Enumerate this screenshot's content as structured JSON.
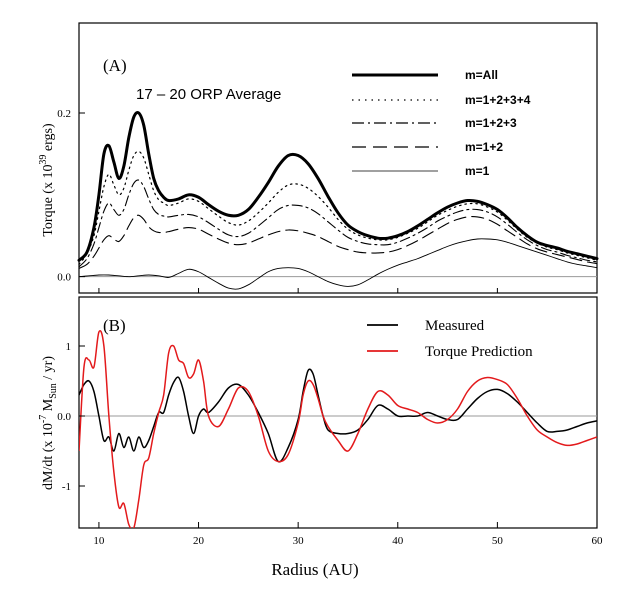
{
  "chart_data": [
    {
      "id": "A",
      "type": "line",
      "panel_label": "(A)",
      "annotation": "17 – 20 ORP Average",
      "ylabel_parts": {
        "prefix": "Torque (x 10",
        "sup": "39",
        "suffix": " ergs)"
      },
      "xlim": [
        8,
        60
      ],
      "ylim": [
        -0.02,
        0.31
      ],
      "yticks": [
        0.0,
        0.2
      ],
      "ytick_labels": [
        "0.0",
        "0.2"
      ],
      "legend": [
        "m=All",
        "m=1+2+3+4",
        "m=1+2+3",
        "m=1+2",
        "m=1"
      ],
      "series": [
        {
          "name": "m=All",
          "style": "thick",
          "x": [
            8,
            8.8,
            9.5,
            10,
            10.5,
            11,
            11.5,
            12,
            12.5,
            13,
            13.5,
            14,
            14.5,
            15,
            15.5,
            16,
            16.5,
            17,
            18,
            19,
            20,
            21,
            22,
            23,
            24,
            25,
            26,
            27,
            28,
            29,
            30,
            31,
            32,
            33,
            34,
            35,
            36,
            37,
            38,
            39,
            40,
            41,
            42,
            43,
            44,
            45,
            46,
            47,
            48,
            49,
            50,
            51,
            52,
            53,
            54,
            55,
            56,
            57,
            58,
            59,
            60
          ],
          "values": [
            0.02,
            0.03,
            0.06,
            0.1,
            0.15,
            0.16,
            0.14,
            0.12,
            0.135,
            0.17,
            0.195,
            0.2,
            0.185,
            0.15,
            0.12,
            0.105,
            0.097,
            0.093,
            0.095,
            0.1,
            0.097,
            0.088,
            0.08,
            0.075,
            0.075,
            0.082,
            0.097,
            0.115,
            0.135,
            0.148,
            0.148,
            0.138,
            0.12,
            0.098,
            0.078,
            0.063,
            0.055,
            0.05,
            0.047,
            0.047,
            0.05,
            0.055,
            0.062,
            0.07,
            0.078,
            0.085,
            0.09,
            0.093,
            0.092,
            0.088,
            0.082,
            0.072,
            0.06,
            0.05,
            0.042,
            0.038,
            0.035,
            0.031,
            0.028,
            0.025,
            0.022
          ]
        },
        {
          "name": "m=1+2+3+4",
          "style": "dotted",
          "x": [
            8,
            8.8,
            9.5,
            10,
            10.5,
            11,
            11.5,
            12,
            12.5,
            13,
            13.5,
            14,
            14.5,
            15,
            15.5,
            16,
            16.5,
            17,
            18,
            19,
            20,
            21,
            22,
            23,
            24,
            25,
            26,
            27,
            28,
            29,
            30,
            31,
            32,
            33,
            34,
            35,
            36,
            37,
            38,
            39,
            40,
            41,
            42,
            43,
            44,
            45,
            46,
            47,
            48,
            49,
            50,
            51,
            52,
            53,
            54,
            55,
            56,
            57,
            58,
            59,
            60
          ],
          "values": [
            0.015,
            0.028,
            0.05,
            0.08,
            0.11,
            0.125,
            0.112,
            0.1,
            0.108,
            0.13,
            0.148,
            0.153,
            0.145,
            0.125,
            0.105,
            0.094,
            0.09,
            0.087,
            0.09,
            0.095,
            0.092,
            0.083,
            0.074,
            0.066,
            0.063,
            0.068,
            0.078,
            0.09,
            0.103,
            0.112,
            0.113,
            0.108,
            0.098,
            0.085,
            0.07,
            0.058,
            0.051,
            0.047,
            0.045,
            0.045,
            0.048,
            0.053,
            0.059,
            0.067,
            0.075,
            0.081,
            0.086,
            0.089,
            0.089,
            0.085,
            0.079,
            0.069,
            0.058,
            0.048,
            0.041,
            0.036,
            0.033,
            0.029,
            0.026,
            0.023,
            0.02
          ]
        },
        {
          "name": "m=1+2+3",
          "style": "dashdot",
          "x": [
            8,
            8.8,
            9.5,
            10,
            10.5,
            11,
            11.5,
            12,
            12.5,
            13,
            13.5,
            14,
            14.5,
            15,
            15.5,
            16,
            16.5,
            17,
            18,
            19,
            20,
            21,
            22,
            23,
            24,
            25,
            26,
            27,
            28,
            29,
            30,
            31,
            32,
            33,
            34,
            35,
            36,
            37,
            38,
            39,
            40,
            41,
            42,
            43,
            44,
            45,
            46,
            47,
            48,
            49,
            50,
            51,
            52,
            53,
            54,
            55,
            56,
            57,
            58,
            59,
            60
          ],
          "values": [
            0.012,
            0.022,
            0.04,
            0.06,
            0.08,
            0.09,
            0.082,
            0.075,
            0.082,
            0.1,
            0.114,
            0.118,
            0.11,
            0.095,
            0.082,
            0.076,
            0.074,
            0.073,
            0.075,
            0.076,
            0.073,
            0.066,
            0.058,
            0.051,
            0.049,
            0.053,
            0.062,
            0.072,
            0.082,
            0.087,
            0.087,
            0.084,
            0.077,
            0.067,
            0.057,
            0.048,
            0.043,
            0.04,
            0.039,
            0.039,
            0.042,
            0.047,
            0.053,
            0.06,
            0.068,
            0.074,
            0.079,
            0.082,
            0.082,
            0.079,
            0.073,
            0.064,
            0.054,
            0.045,
            0.038,
            0.033,
            0.03,
            0.026,
            0.023,
            0.02,
            0.018
          ]
        },
        {
          "name": "m=1+2",
          "style": "dashed",
          "x": [
            8,
            8.8,
            9.5,
            10,
            10.5,
            11,
            11.5,
            12,
            12.5,
            13,
            13.5,
            14,
            14.5,
            15,
            15.5,
            16,
            16.5,
            17,
            18,
            19,
            20,
            21,
            22,
            23,
            24,
            25,
            26,
            27,
            28,
            29,
            30,
            31,
            32,
            33,
            34,
            35,
            36,
            37,
            38,
            39,
            40,
            41,
            42,
            43,
            44,
            45,
            46,
            47,
            48,
            49,
            50,
            51,
            52,
            53,
            54,
            55,
            56,
            57,
            58,
            59,
            60
          ],
          "values": [
            0.01,
            0.015,
            0.025,
            0.035,
            0.045,
            0.05,
            0.046,
            0.043,
            0.05,
            0.062,
            0.072,
            0.075,
            0.07,
            0.061,
            0.056,
            0.054,
            0.054,
            0.055,
            0.058,
            0.06,
            0.058,
            0.052,
            0.046,
            0.041,
            0.039,
            0.041,
            0.046,
            0.051,
            0.055,
            0.057,
            0.056,
            0.053,
            0.049,
            0.043,
            0.037,
            0.033,
            0.03,
            0.029,
            0.029,
            0.03,
            0.033,
            0.038,
            0.044,
            0.051,
            0.058,
            0.065,
            0.07,
            0.073,
            0.073,
            0.07,
            0.064,
            0.056,
            0.048,
            0.04,
            0.034,
            0.03,
            0.027,
            0.024,
            0.021,
            0.018,
            0.016
          ]
        },
        {
          "name": "m=1",
          "style": "thin",
          "x": [
            8,
            9,
            10,
            11,
            12,
            13,
            14,
            15,
            16,
            17,
            18,
            19,
            20,
            21,
            22,
            23,
            24,
            25,
            26,
            27,
            28,
            29,
            30,
            31,
            32,
            33,
            34,
            35,
            36,
            37,
            38,
            39,
            40,
            41,
            42,
            43,
            44,
            45,
            46,
            47,
            48,
            49,
            50,
            51,
            52,
            53,
            54,
            55,
            56,
            57,
            58,
            59,
            60
          ],
          "values": [
            0.0,
            0.001,
            0.002,
            0.002,
            0.001,
            0.0,
            0.001,
            0.002,
            0.001,
            -0.001,
            0.004,
            0.009,
            0.006,
            -0.001,
            -0.008,
            -0.014,
            -0.015,
            -0.01,
            -0.002,
            0.006,
            0.01,
            0.011,
            0.01,
            0.006,
            0.0,
            -0.006,
            -0.01,
            -0.012,
            -0.01,
            -0.004,
            0.003,
            0.009,
            0.014,
            0.018,
            0.022,
            0.027,
            0.032,
            0.037,
            0.041,
            0.044,
            0.046,
            0.046,
            0.045,
            0.042,
            0.038,
            0.034,
            0.03,
            0.026,
            0.022,
            0.018,
            0.015,
            0.013,
            0.011
          ]
        }
      ]
    },
    {
      "id": "B",
      "type": "line",
      "panel_label": "(B)",
      "ylabel_parts": {
        "prefix": "dM/dt (x 10",
        "sup": "-7",
        "mid": " M",
        "sub": "Sun",
        "suffix": " / yr)"
      },
      "xlabel": "Radius (AU)",
      "xlim": [
        8,
        60
      ],
      "ylim": [
        -1.6,
        1.7
      ],
      "xticks": [
        10,
        20,
        30,
        40,
        50,
        60
      ],
      "xtick_labels": [
        "10",
        "20",
        "30",
        "40",
        "50",
        "60"
      ],
      "yticks": [
        1,
        0,
        -1
      ],
      "ytick_labels": [
        "1",
        "0.0",
        "-1"
      ],
      "legend": [
        "Measured",
        "Torque Prediction"
      ],
      "series": [
        {
          "name": "Measured",
          "color": "#000000",
          "x": [
            8,
            8.5,
            9,
            9.5,
            10,
            10.5,
            11,
            11.5,
            12,
            12.5,
            13,
            13.5,
            14,
            14.5,
            15,
            15.5,
            16,
            16.5,
            17,
            17.5,
            18,
            18.5,
            19,
            19.5,
            20,
            20.5,
            21,
            22,
            23,
            24,
            25,
            26,
            27,
            28,
            29,
            30,
            30.5,
            31,
            31.5,
            32,
            32.5,
            33,
            34,
            35,
            36,
            37,
            38,
            39,
            40,
            41,
            42,
            43,
            44,
            45,
            46,
            47,
            48,
            49,
            50,
            51,
            52,
            53,
            54,
            55,
            56,
            57,
            58,
            59,
            60
          ],
          "values": [
            0.3,
            0.45,
            0.5,
            0.35,
            0.0,
            -0.35,
            -0.3,
            -0.5,
            -0.25,
            -0.45,
            -0.3,
            -0.5,
            -0.3,
            -0.45,
            -0.35,
            -0.15,
            0.05,
            0.05,
            0.3,
            0.48,
            0.55,
            0.35,
            0.0,
            -0.25,
            0.0,
            0.1,
            0.05,
            0.2,
            0.4,
            0.45,
            0.3,
            0.05,
            -0.25,
            -0.65,
            -0.45,
            -0.05,
            0.35,
            0.65,
            0.6,
            0.3,
            0.0,
            -0.2,
            -0.25,
            -0.25,
            -0.2,
            -0.05,
            0.15,
            0.1,
            0.0,
            0.0,
            0.0,
            0.05,
            0.0,
            -0.05,
            -0.05,
            0.1,
            0.25,
            0.35,
            0.38,
            0.32,
            0.2,
            0.05,
            -0.1,
            -0.22,
            -0.22,
            -0.2,
            -0.15,
            -0.1,
            -0.07
          ]
        },
        {
          "name": "Torque Prediction",
          "color": "#e31a1c",
          "x": [
            8,
            8.5,
            9,
            9.5,
            10,
            10.5,
            11,
            11.5,
            12,
            12.5,
            13,
            13.5,
            14,
            14.5,
            15,
            15.5,
            16,
            16.5,
            17,
            17.5,
            18,
            18.5,
            19,
            19.5,
            20,
            20.5,
            21,
            22,
            23,
            24,
            25,
            26,
            27,
            28,
            29,
            30,
            30.5,
            31,
            31.5,
            32,
            32.5,
            33,
            34,
            35,
            36,
            37,
            38,
            39,
            40,
            41,
            42,
            43,
            44,
            45,
            46,
            47,
            48,
            49,
            50,
            51,
            52,
            53,
            54,
            55,
            56,
            57,
            58,
            59,
            60
          ],
          "values": [
            -0.5,
            0.7,
            0.8,
            0.7,
            1.2,
            1.0,
            0.0,
            -0.8,
            -1.3,
            -1.25,
            -1.55,
            -1.6,
            -1.2,
            -0.7,
            -0.6,
            -0.25,
            0.05,
            0.3,
            0.9,
            1.0,
            0.8,
            0.75,
            0.55,
            0.6,
            0.8,
            0.5,
            0.0,
            -0.15,
            0.1,
            0.4,
            0.35,
            0.0,
            -0.5,
            -0.65,
            -0.55,
            -0.1,
            0.3,
            0.5,
            0.45,
            0.25,
            0.0,
            -0.15,
            -0.35,
            -0.5,
            -0.25,
            0.1,
            0.35,
            0.3,
            0.15,
            0.1,
            0.05,
            -0.05,
            -0.1,
            -0.05,
            0.1,
            0.35,
            0.5,
            0.55,
            0.52,
            0.45,
            0.25,
            0.0,
            -0.2,
            -0.3,
            -0.38,
            -0.42,
            -0.4,
            -0.35,
            -0.3
          ]
        }
      ]
    }
  ]
}
